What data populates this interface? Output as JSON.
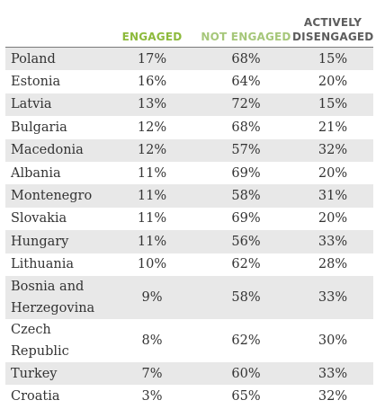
{
  "chart_data": {
    "type": "table",
    "columns": [
      "",
      "ENGAGED",
      "NOT ENGAGED",
      "ACTIVELY DISENGAGED"
    ],
    "header_colors": {
      "engaged": "#8dba3c",
      "not_engaged": "#a6c77a",
      "actively_disengaged": "#5d5d5d"
    },
    "rows": [
      {
        "country": "Poland",
        "engaged": "17%",
        "not_engaged": "68%",
        "actively_disengaged": "15%"
      },
      {
        "country": "Estonia",
        "engaged": "16%",
        "not_engaged": "64%",
        "actively_disengaged": "20%"
      },
      {
        "country": "Latvia",
        "engaged": "13%",
        "not_engaged": "72%",
        "actively_disengaged": "15%"
      },
      {
        "country": "Bulgaria",
        "engaged": "12%",
        "not_engaged": "68%",
        "actively_disengaged": "21%"
      },
      {
        "country": "Macedonia",
        "engaged": "12%",
        "not_engaged": "57%",
        "actively_disengaged": "32%"
      },
      {
        "country": "Albania",
        "engaged": "11%",
        "not_engaged": "69%",
        "actively_disengaged": "20%"
      },
      {
        "country": "Montenegro",
        "engaged": "11%",
        "not_engaged": "58%",
        "actively_disengaged": "31%"
      },
      {
        "country": "Slovakia",
        "engaged": "11%",
        "not_engaged": "69%",
        "actively_disengaged": "20%"
      },
      {
        "country": "Hungary",
        "engaged": "11%",
        "not_engaged": "56%",
        "actively_disengaged": "33%"
      },
      {
        "country": "Lithuania",
        "engaged": "10%",
        "not_engaged": "62%",
        "actively_disengaged": "28%"
      },
      {
        "country": "Bosnia and Herzegovina",
        "engaged": "9%",
        "not_engaged": "58%",
        "actively_disengaged": "33%"
      },
      {
        "country": "Czech Republic",
        "engaged": "8%",
        "not_engaged": "62%",
        "actively_disengaged": "30%"
      },
      {
        "country": "Turkey",
        "engaged": "7%",
        "not_engaged": "60%",
        "actively_disengaged": "33%"
      },
      {
        "country": "Croatia",
        "engaged": "3%",
        "not_engaged": "65%",
        "actively_disengaged": "32%"
      }
    ]
  }
}
